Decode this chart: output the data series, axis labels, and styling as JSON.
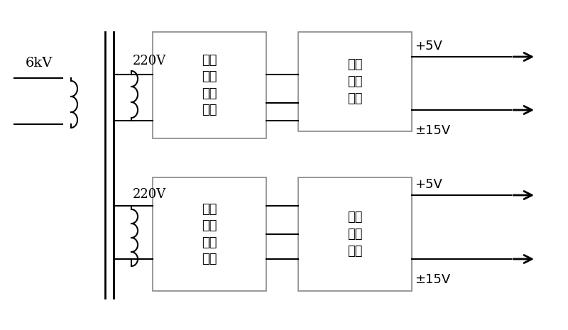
{
  "bg_color": "#ffffff",
  "line_color": "#000000",
  "box_line_color": "#888888",
  "fig_width": 8.0,
  "fig_height": 4.65,
  "dpi": 100,
  "label_6kV": "6kV",
  "label_220V": "220V",
  "label_filter_box": "滤波\n及抗\n干扰\n回路",
  "label_power_box": "电源\n转换\n回路",
  "label_5V": "+5V",
  "label_15V": "±15V",
  "font_size_label": 13,
  "font_size_kv": 14,
  "font_size_220": 13
}
